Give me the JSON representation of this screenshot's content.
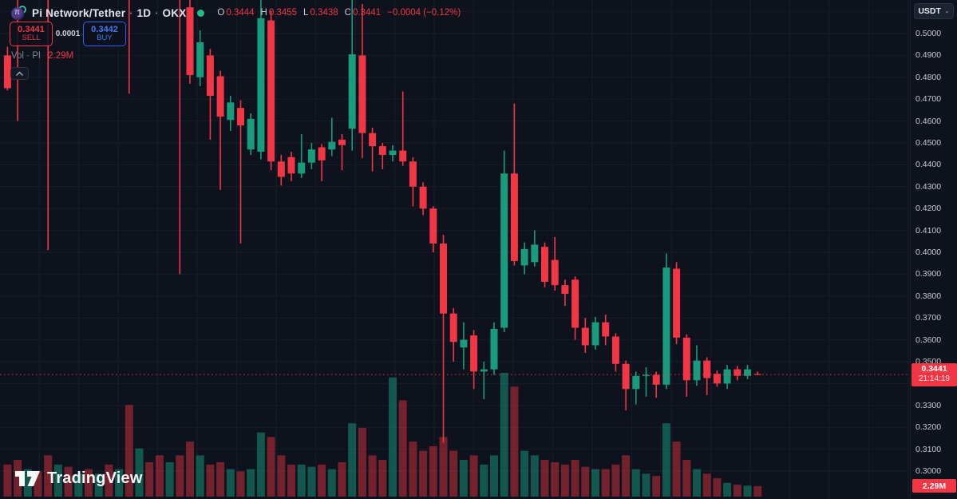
{
  "header": {
    "symbol": "Pi Network/Tether",
    "separator": "·",
    "interval": "1D",
    "exchange": "OKX",
    "ohlc": {
      "o_label": "O",
      "o": "0.3444",
      "h_label": "H",
      "h": "0.3455",
      "l_label": "L",
      "l": "0.3438",
      "c_label": "C",
      "c": "0.3441",
      "change": "−0.0004 (−0.12%)"
    },
    "status_color": "#1ebd85"
  },
  "trade_panel": {
    "sell_price": "0.3441",
    "sell_label": "SELL",
    "spread": "0.0001",
    "buy_price": "0.3442",
    "buy_label": "BUY"
  },
  "indicator": {
    "label": "Vol · PI",
    "value": "2.29M"
  },
  "icons": {
    "collapse": "chevron-up-icon",
    "currency_caret": "chevron-down-icon",
    "caret_glyph": "⌄"
  },
  "axis": {
    "currency": "USDT",
    "labels": [
      "0.5000",
      "0.4900",
      "0.4800",
      "0.4700",
      "0.4600",
      "0.4500",
      "0.4400",
      "0.4300",
      "0.4200",
      "0.4100",
      "0.4000",
      "0.3900",
      "0.3800",
      "0.3700",
      "0.3600",
      "0.3500",
      "0.3300",
      "0.3200",
      "0.3100",
      "0.3000"
    ],
    "price_badge": {
      "price": "0.3441",
      "countdown": "21:14:19",
      "color": "#f23645"
    },
    "volume_badge": {
      "value": "2.29M",
      "color": "#f23645"
    }
  },
  "watermark": {
    "text": "TradingView"
  },
  "chart_data": {
    "type": "candlestick+volume",
    "title": "Pi Network/Tether · 1D · OKX",
    "up_color": "#189c7d",
    "down_color": "#f23645",
    "vol_up_color": "rgba(24,156,125,0.5)",
    "vol_down_color": "rgba(242,54,69,0.45)",
    "grid_color": "#161d2a",
    "current_price": 0.3441,
    "current_volume_m": 2.29,
    "price_axis": {
      "visible_min": 0.3,
      "visible_max": 0.5,
      "step": 0.01
    },
    "volume_unit": "M",
    "candles_ohlcv": [
      [
        0.49,
        0.494,
        0.474,
        0.475,
        7
      ],
      [
        0.54,
        0.545,
        0.46,
        0.524,
        8
      ],
      [
        0.524,
        0.542,
        0.518,
        0.536,
        6
      ],
      [
        0.536,
        0.541,
        0.52,
        0.527,
        5.5
      ],
      [
        0.538,
        0.544,
        0.401,
        0.521,
        9
      ],
      [
        0.521,
        0.537,
        0.517,
        0.533,
        7
      ],
      [
        0.533,
        0.538,
        0.519,
        0.522,
        6.5
      ],
      [
        0.522,
        0.535,
        0.518,
        0.531,
        5
      ],
      [
        0.531,
        0.536,
        0.518,
        0.521,
        6
      ],
      [
        0.521,
        0.533,
        0.517,
        0.53,
        5
      ],
      [
        0.53,
        0.535,
        0.517,
        0.52,
        7
      ],
      [
        0.52,
        0.532,
        0.516,
        0.529,
        6
      ],
      [
        0.537,
        0.542,
        0.4725,
        0.52,
        20
      ],
      [
        0.52,
        0.534,
        0.516,
        0.53,
        10.5
      ],
      [
        0.53,
        0.535,
        0.517,
        0.521,
        7.5
      ],
      [
        0.521,
        0.527,
        0.5165,
        0.519,
        9
      ],
      [
        0.519,
        0.531,
        0.5155,
        0.528,
        7.5
      ],
      [
        0.528,
        0.533,
        0.39,
        0.519,
        9
      ],
      [
        0.512,
        0.5155,
        0.477,
        0.481,
        12
      ],
      [
        0.48,
        0.5015,
        0.476,
        0.496,
        9
      ],
      [
        0.49,
        0.493,
        0.4515,
        0.4715,
        7
      ],
      [
        0.4805,
        0.483,
        0.4285,
        0.462,
        7.5
      ],
      [
        0.4605,
        0.4715,
        0.4555,
        0.4685,
        6
      ],
      [
        0.466,
        0.4695,
        0.404,
        0.458,
        5.5
      ],
      [
        0.447,
        0.4635,
        0.4445,
        0.461,
        6
      ],
      [
        0.446,
        0.5165,
        0.4425,
        0.507,
        14
      ],
      [
        0.506,
        0.5105,
        0.4375,
        0.4415,
        13
      ],
      [
        0.4415,
        0.4445,
        0.4305,
        0.4345,
        9
      ],
      [
        0.4435,
        0.446,
        0.4325,
        0.436,
        7
      ],
      [
        0.436,
        0.454,
        0.434,
        0.441,
        7
      ],
      [
        0.441,
        0.45,
        0.438,
        0.447,
        6.5
      ],
      [
        0.448,
        0.4495,
        0.4325,
        0.442,
        7
      ],
      [
        0.447,
        0.4615,
        0.444,
        0.4505,
        6
      ],
      [
        0.4515,
        0.454,
        0.4375,
        0.449,
        7.5
      ],
      [
        0.4565,
        0.519,
        0.4465,
        0.4905,
        16
      ],
      [
        0.49,
        0.5135,
        0.443,
        0.4545,
        15
      ],
      [
        0.4545,
        0.457,
        0.437,
        0.4485,
        9
      ],
      [
        0.4485,
        0.45,
        0.438,
        0.4445,
        8
      ],
      [
        0.4445,
        0.449,
        0.4415,
        0.4465,
        26
      ],
      [
        0.4465,
        0.4735,
        0.4395,
        0.4415,
        21
      ],
      [
        0.4415,
        0.4435,
        0.421,
        0.43,
        12
      ],
      [
        0.43,
        0.432,
        0.417,
        0.42,
        10
      ],
      [
        0.42,
        0.421,
        0.4,
        0.404,
        11
      ],
      [
        0.404,
        0.408,
        0.313,
        0.372,
        13
      ],
      [
        0.372,
        0.3745,
        0.35,
        0.359,
        10
      ],
      [
        0.3565,
        0.368,
        0.3465,
        0.36,
        8
      ],
      [
        0.362,
        0.3645,
        0.3375,
        0.3455,
        9
      ],
      [
        0.3455,
        0.35,
        0.3328,
        0.3465,
        7
      ],
      [
        0.3465,
        0.368,
        0.344,
        0.365,
        9
      ],
      [
        0.3655,
        0.4465,
        0.3635,
        0.436,
        27
      ],
      [
        0.436,
        0.468,
        0.394,
        0.396,
        24
      ],
      [
        0.394,
        0.4045,
        0.39,
        0.4015,
        10
      ],
      [
        0.3955,
        0.41,
        0.3935,
        0.4035,
        9
      ],
      [
        0.4025,
        0.4045,
        0.384,
        0.3865,
        8
      ],
      [
        0.3965,
        0.407,
        0.3825,
        0.385,
        7.5
      ],
      [
        0.385,
        0.3875,
        0.3755,
        0.381,
        7
      ],
      [
        0.3875,
        0.389,
        0.36,
        0.3655,
        8
      ],
      [
        0.3655,
        0.37,
        0.354,
        0.3575,
        6.5
      ],
      [
        0.3575,
        0.3705,
        0.3555,
        0.368,
        6
      ],
      [
        0.368,
        0.3715,
        0.3575,
        0.3615,
        6
      ],
      [
        0.3615,
        0.363,
        0.3455,
        0.349,
        7
      ],
      [
        0.349,
        0.3505,
        0.3277,
        0.3375,
        9
      ],
      [
        0.3375,
        0.3455,
        0.3305,
        0.3435,
        6
      ],
      [
        0.3435,
        0.3475,
        0.334,
        0.344,
        5
      ],
      [
        0.344,
        0.3455,
        0.3335,
        0.3395,
        4.5
      ],
      [
        0.3395,
        0.3995,
        0.3375,
        0.393,
        16
      ],
      [
        0.3925,
        0.3955,
        0.358,
        0.361,
        12
      ],
      [
        0.361,
        0.3625,
        0.334,
        0.3415,
        8
      ],
      [
        0.3415,
        0.3575,
        0.339,
        0.3505,
        6
      ],
      [
        0.3505,
        0.352,
        0.3347,
        0.3425,
        5
      ],
      [
        0.3445,
        0.346,
        0.3385,
        0.34,
        4
      ],
      [
        0.34,
        0.3485,
        0.3375,
        0.3465,
        3
      ],
      [
        0.3465,
        0.348,
        0.3415,
        0.3435,
        2.6
      ],
      [
        0.3435,
        0.3485,
        0.342,
        0.3465,
        2.4
      ],
      [
        0.3444,
        0.3455,
        0.3438,
        0.3441,
        2.29
      ]
    ]
  }
}
